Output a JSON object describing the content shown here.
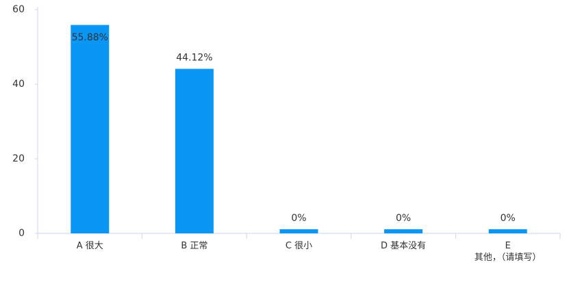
{
  "chart_data": {
    "type": "bar",
    "categories": [
      "A 很大",
      "B 正常",
      "C 很小",
      "D 基本没有",
      "E\n其他，（请填写）"
    ],
    "values": [
      55.88,
      44.12,
      0,
      0,
      0
    ],
    "value_labels": [
      "55.88%",
      "44.12%",
      "0%",
      "0%",
      "0%"
    ],
    "color": "#0a96f5",
    "ylim": [
      0,
      60
    ],
    "yticks": [
      0,
      20,
      40,
      60
    ],
    "grid": false
  }
}
